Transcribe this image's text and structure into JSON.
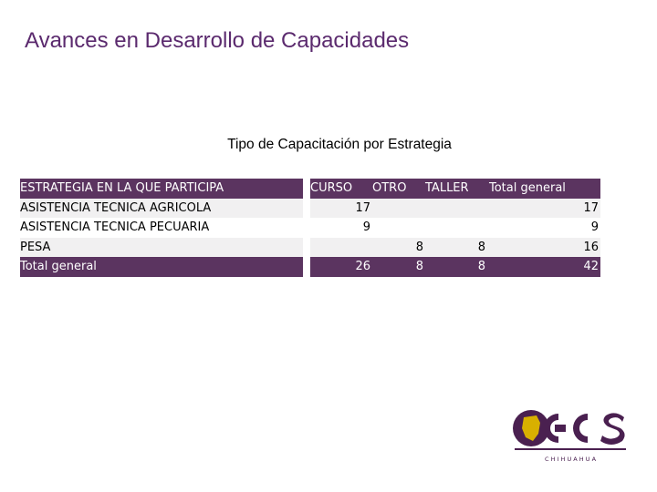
{
  "slide": {
    "title": "Avances en Desarrollo de Capacidades"
  },
  "table": {
    "caption": "Tipo de Capacitación por Estrategia",
    "headers": [
      "ESTRATEGIA EN LA QUE PARTICIPA",
      "CURSO",
      "OTRO",
      "TALLER",
      "Total general"
    ],
    "rows": [
      [
        "ASISTENCIA TECNICA AGRICOLA",
        "17",
        "",
        "",
        "17"
      ],
      [
        "ASISTENCIA TECNICA PECUARIA",
        "9",
        "",
        "",
        "9"
      ],
      [
        "PESA",
        "",
        "8",
        "8",
        "16"
      ]
    ],
    "total": [
      "Total general",
      "26",
      "8",
      "8",
      "42"
    ]
  },
  "logo": {
    "text": "CECS",
    "subtitle": "C H I H U A H U A",
    "colors": {
      "purple": "#4a2050",
      "gold": "#d8b000"
    }
  },
  "colors": {
    "title": "#5b2a6e",
    "header_bg": "#5b3460",
    "row_shade": "#f1f0f1"
  }
}
